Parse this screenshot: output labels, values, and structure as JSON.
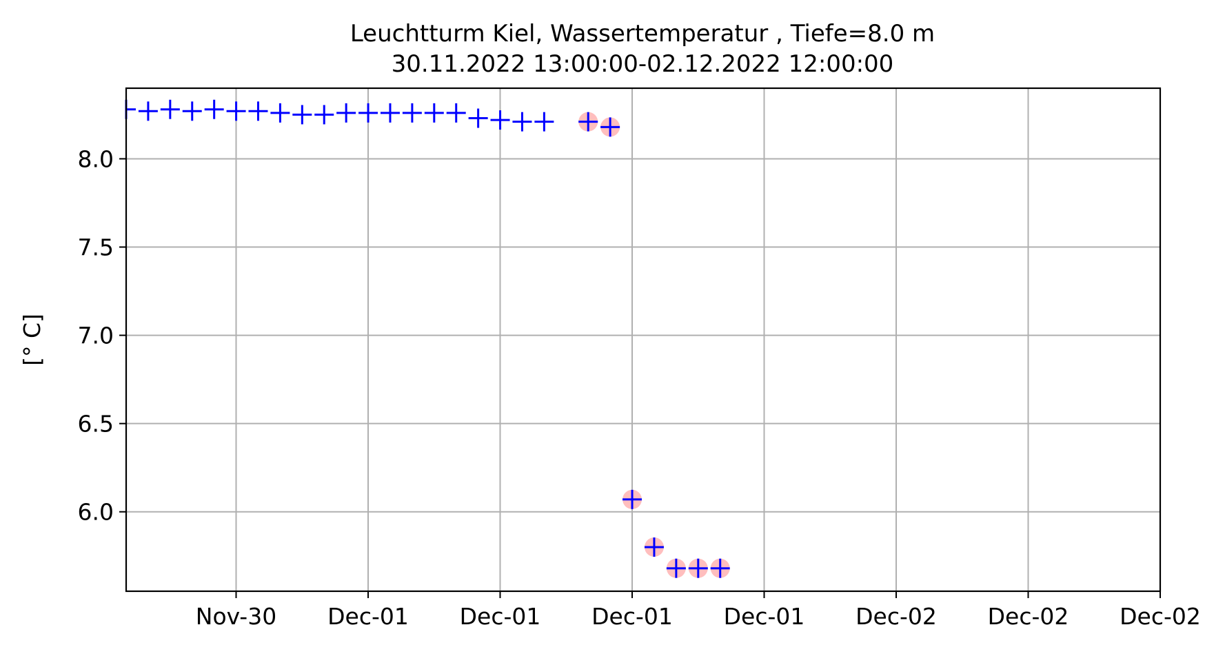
{
  "chart_data": {
    "type": "scatter",
    "title": "Leuchtturm Kiel, Wassertemperatur , Tiefe=8.0 m",
    "subtitle": "30.11.2022 13:00:00-02.12.2022 12:00:00",
    "xlabel": "",
    "ylabel": "[° C]",
    "x_tick_labels": [
      "Nov-30",
      "Dec-01",
      "Dec-01",
      "Dec-01",
      "Dec-01",
      "Dec-02",
      "Dec-02",
      "Dec-02"
    ],
    "y_tick_labels": [
      "6.0",
      "6.5",
      "7.0",
      "7.5",
      "8.0"
    ],
    "y_ticks": [
      6.0,
      6.5,
      7.0,
      7.5,
      8.0
    ],
    "ylim": [
      5.55,
      8.4
    ],
    "xlim": [
      "2022-11-30 13:00",
      "2022-12-02 12:00"
    ],
    "grid": true,
    "colors": {
      "marker": "#0000ff",
      "flag": "#ffb3b3",
      "grid": "#b0b0b0",
      "axes": "#000000"
    },
    "x": [
      "2022-11-30 13:00",
      "2022-11-30 14:00",
      "2022-11-30 15:00",
      "2022-11-30 16:00",
      "2022-11-30 17:00",
      "2022-11-30 18:00",
      "2022-11-30 19:00",
      "2022-11-30 20:00",
      "2022-11-30 21:00",
      "2022-11-30 22:00",
      "2022-11-30 23:00",
      "2022-12-01 00:00",
      "2022-12-01 01:00",
      "2022-12-01 02:00",
      "2022-12-01 03:00",
      "2022-12-01 04:00",
      "2022-12-01 05:00",
      "2022-12-01 06:00",
      "2022-12-01 07:00",
      "2022-12-01 08:00",
      "2022-12-01 09:00",
      "2022-12-01 10:00",
      "2022-12-01 11:00",
      "2022-12-01 12:00",
      "2022-12-01 13:00",
      "2022-12-01 14:00",
      "2022-12-01 15:00",
      "2022-12-01 16:00",
      "2022-12-01 17:00",
      "2022-12-01 18:00"
    ],
    "series": [
      {
        "marker": "+",
        "values": [
          8.28,
          8.27,
          8.28,
          8.27,
          8.28,
          8.27,
          8.27,
          8.26,
          8.25,
          8.25,
          8.26,
          8.26,
          8.26,
          8.26,
          8.26,
          8.26,
          8.23,
          8.22,
          8.21,
          8.21,
          null,
          8.21,
          8.18,
          6.07,
          5.8,
          5.68,
          5.68,
          5.68,
          null,
          null
        ],
        "flagged": [
          false,
          false,
          false,
          false,
          false,
          false,
          false,
          false,
          false,
          false,
          false,
          false,
          false,
          false,
          false,
          false,
          false,
          false,
          false,
          false,
          false,
          true,
          true,
          true,
          true,
          true,
          true,
          true,
          false,
          false
        ]
      }
    ]
  }
}
